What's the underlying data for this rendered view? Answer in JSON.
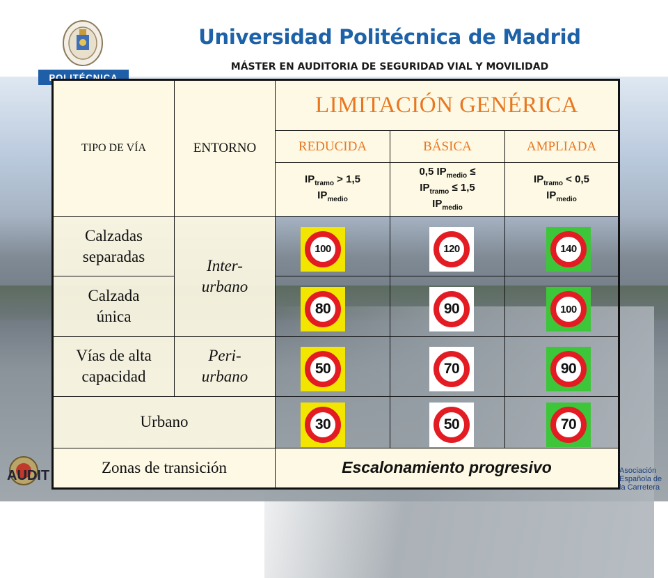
{
  "header": {
    "title": "Universidad Politécnica de Madrid",
    "subtitle": "MÁSTER EN AUDITORIA DE SEGURIDAD VIAL Y MOVILIDAD",
    "banner": "POLITÉCNICA"
  },
  "table": {
    "col_tipo": "TIPO DE VÍA",
    "col_entorno": "ENTORNO",
    "generic_title": "LIMITACIÓN GENÉRICA",
    "categories": [
      "REDUCIDA",
      "BÁSICA",
      "AMPLIADA"
    ],
    "ip": {
      "reducida_a": "IP",
      "reducida_a_sub": "tramo",
      "reducida_b": " > 1,5",
      "reducida_c": "IP",
      "reducida_c_sub": "medio",
      "basica_a": "0,5 IP",
      "basica_a_sub": "medio",
      "basica_b": " ≤",
      "basica_c": "IP",
      "basica_c_sub": "tramo",
      "basica_d": " ≤ 1,5",
      "basica_e": "IP",
      "basica_e_sub": "medio",
      "ampliada_a": "IP",
      "ampliada_a_sub": "tramo",
      "ampliada_b": " < 0,5",
      "ampliada_c": "IP",
      "ampliada_c_sub": "medio"
    },
    "rows": [
      {
        "label": "Calzadas separadas",
        "limits": [
          "100",
          "120",
          "140"
        ]
      },
      {
        "label": "Calzada única",
        "limits": [
          "80",
          "90",
          "100"
        ]
      },
      {
        "label": "Vías de alta capacidad",
        "limits": [
          "50",
          "70",
          "90"
        ]
      },
      {
        "label": "Urbano",
        "limits": [
          "30",
          "50",
          "70"
        ]
      }
    ],
    "env_interurbano": "Inter- urbano",
    "env_periurbano": "Peri- urbano",
    "zonas_label": "Zonas de transición",
    "escalonamiento": "Escalonamiento progresivo"
  },
  "sign_backgrounds": {
    "reducida": "#f2e600",
    "basica": "#ffffff",
    "ampliada": "#3ec63a"
  },
  "footer": {
    "left_logo_text": "AUDIT",
    "right_logo_text": "Asociación Española de la Carretera"
  }
}
